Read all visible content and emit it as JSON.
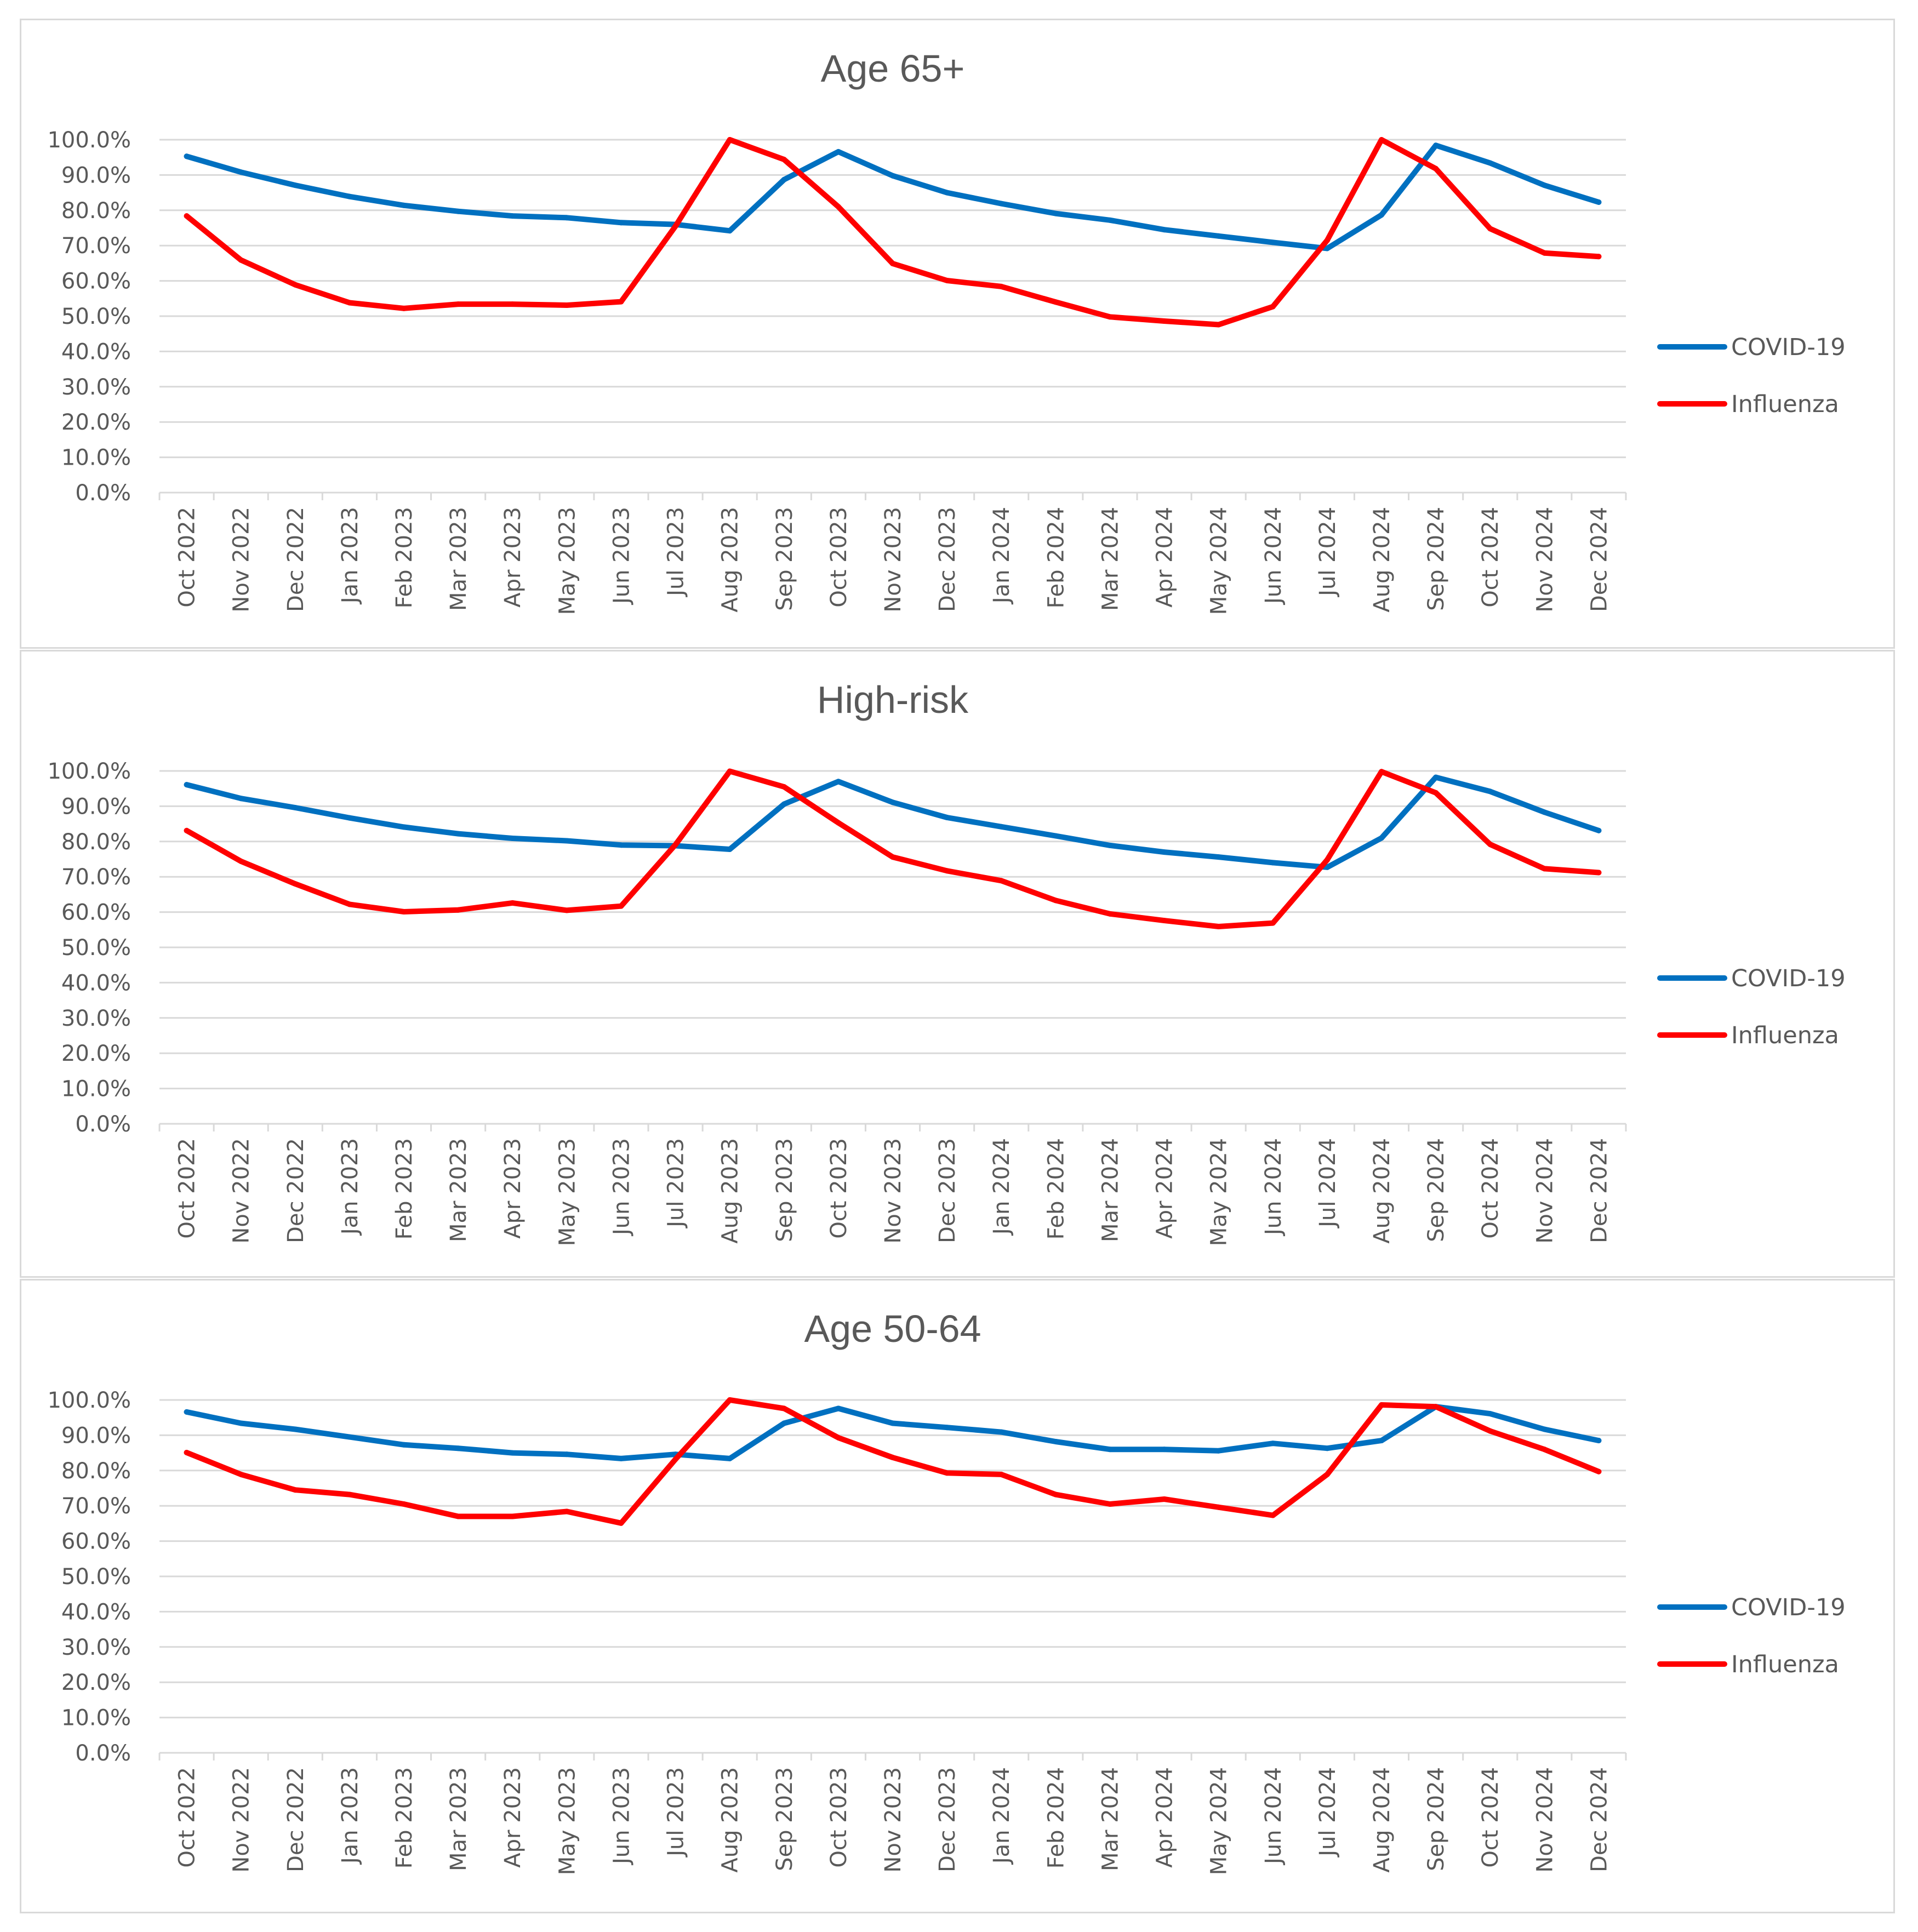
{
  "chart_data": [
    {
      "type": "line",
      "title": "Age 65+",
      "xlabel": "",
      "ylabel": "",
      "ylim": [
        0,
        100
      ],
      "y_ticks": [
        "0.0%",
        "10.0%",
        "20.0%",
        "30.0%",
        "40.0%",
        "50.0%",
        "60.0%",
        "70.0%",
        "80.0%",
        "90.0%",
        "100.0%"
      ],
      "grid": true,
      "legend_position": "right",
      "categories": [
        "Oct 2022",
        "Nov 2022",
        "Dec 2022",
        "Jan 2023",
        "Feb 2023",
        "Mar 2023",
        "Apr 2023",
        "May 2023",
        "Jun 2023",
        "Jul 2023",
        "Aug 2023",
        "Sep 2023",
        "Oct 2023",
        "Nov 2023",
        "Dec 2023",
        "Jan 2024",
        "Feb 2024",
        "Mar 2024",
        "Apr 2024",
        "May 2024",
        "Jun 2024",
        "Jul 2024",
        "Aug 2024",
        "Sep 2024",
        "Oct 2024",
        "Nov 2024",
        "Dec 2024"
      ],
      "series": [
        {
          "name": "COVID-19",
          "color": "#0070c0",
          "values": [
            95.3,
            90.8,
            87.1,
            83.9,
            81.4,
            79.7,
            78.4,
            77.9,
            76.5,
            76.0,
            74.2,
            88.7,
            96.6,
            89.8,
            85.0,
            81.9,
            79.1,
            77.2,
            74.5,
            72.7,
            70.9,
            69.2,
            78.7,
            98.4,
            93.4,
            87.1,
            82.3
          ]
        },
        {
          "name": "Influenza",
          "color": "#ff0000",
          "values": [
            78.4,
            65.9,
            58.9,
            53.8,
            52.2,
            53.4,
            53.4,
            53.1,
            54.1,
            75.5,
            100.0,
            94.4,
            81.0,
            64.9,
            60.1,
            58.4,
            54.0,
            49.8,
            48.6,
            47.6,
            52.7,
            71.5,
            100.0,
            91.8,
            74.8,
            67.9,
            66.9
          ]
        }
      ]
    },
    {
      "type": "line",
      "title": "High-risk",
      "xlabel": "",
      "ylabel": "",
      "ylim": [
        0,
        100
      ],
      "y_ticks": [
        "0.0%",
        "10.0%",
        "20.0%",
        "30.0%",
        "40.0%",
        "50.0%",
        "60.0%",
        "70.0%",
        "80.0%",
        "90.0%",
        "100.0%"
      ],
      "grid": true,
      "legend_position": "right",
      "categories": [
        "Oct 2022",
        "Nov 2022",
        "Dec 2022",
        "Jan 2023",
        "Feb 2023",
        "Mar 2023",
        "Apr 2023",
        "May 2023",
        "Jun 2023",
        "Jul 2023",
        "Aug 2023",
        "Sep 2023",
        "Oct 2023",
        "Nov 2023",
        "Dec 2023",
        "Jan 2024",
        "Feb 2024",
        "Mar 2024",
        "Apr 2024",
        "May 2024",
        "Jun 2024",
        "Jul 2024",
        "Aug 2024",
        "Sep 2024",
        "Oct 2024",
        "Nov 2024",
        "Dec 2024"
      ],
      "series": [
        {
          "name": "COVID-19",
          "color": "#0070c0",
          "values": [
            96.1,
            92.2,
            89.6,
            86.7,
            84.1,
            82.2,
            80.9,
            80.2,
            79.0,
            78.8,
            77.8,
            90.6,
            97.0,
            91.1,
            86.8,
            84.2,
            81.6,
            78.9,
            77.0,
            75.6,
            74.0,
            72.7,
            81.0,
            98.2,
            94.2,
            88.3,
            83.1
          ]
        },
        {
          "name": "Influenza",
          "color": "#ff0000",
          "values": [
            83.1,
            74.4,
            68.0,
            62.2,
            60.1,
            60.6,
            62.6,
            60.5,
            61.7,
            79.1,
            99.9,
            95.5,
            85.3,
            75.6,
            71.7,
            68.9,
            63.3,
            59.5,
            57.6,
            55.9,
            56.9,
            74.8,
            99.8,
            93.8,
            79.2,
            72.3,
            71.2
          ]
        }
      ]
    },
    {
      "type": "line",
      "title": "Age 50-64",
      "xlabel": "",
      "ylabel": "",
      "ylim": [
        0,
        100
      ],
      "y_ticks": [
        "0.0%",
        "10.0%",
        "20.0%",
        "30.0%",
        "40.0%",
        "50.0%",
        "60.0%",
        "70.0%",
        "80.0%",
        "90.0%",
        "100.0%"
      ],
      "grid": true,
      "legend_position": "right",
      "categories": [
        "Oct 2022",
        "Nov 2022",
        "Dec 2022",
        "Jan 2023",
        "Feb 2023",
        "Mar 2023",
        "Apr 2023",
        "May 2023",
        "Jun 2023",
        "Jul 2023",
        "Aug 2023",
        "Sep 2023",
        "Oct 2023",
        "Nov 2023",
        "Dec 2023",
        "Jan 2024",
        "Feb 2024",
        "Mar 2024",
        "Apr 2024",
        "May 2024",
        "Jun 2024",
        "Jul 2024",
        "Aug 2024",
        "Sep 2024",
        "Oct 2024",
        "Nov 2024",
        "Dec 2024"
      ],
      "series": [
        {
          "name": "COVID-19",
          "color": "#0070c0",
          "values": [
            96.6,
            93.4,
            91.7,
            89.5,
            87.3,
            86.3,
            85.0,
            84.6,
            83.4,
            84.6,
            83.4,
            93.4,
            97.6,
            93.4,
            92.2,
            90.9,
            88.2,
            86.0,
            86.0,
            85.6,
            87.7,
            86.3,
            88.5,
            98.1,
            96.1,
            91.7,
            88.5
          ]
        },
        {
          "name": "Influenza",
          "color": "#ff0000",
          "values": [
            85.1,
            78.9,
            74.5,
            73.2,
            70.5,
            67.0,
            67.0,
            68.4,
            65.1,
            83.2,
            100.0,
            97.6,
            89.3,
            83.7,
            79.3,
            78.9,
            73.2,
            70.5,
            71.9,
            69.6,
            67.3,
            78.9,
            98.6,
            98.1,
            91.2,
            86.0,
            79.7
          ]
        }
      ]
    }
  ]
}
